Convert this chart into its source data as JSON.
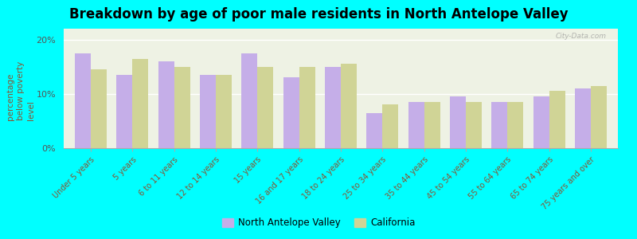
{
  "title": "Breakdown by age of poor male residents in North Antelope Valley",
  "ylabel": "percentage\nbelow poverty\nlevel",
  "categories": [
    "Under 5 years",
    "5 years",
    "6 to 11 years",
    "12 to 14 years",
    "15 years",
    "16 and 17 years",
    "18 to 24 years",
    "25 to 34 years",
    "35 to 44 years",
    "45 to 54 years",
    "55 to 64 years",
    "65 to 74 years",
    "75 years and over"
  ],
  "nav_values": [
    17.5,
    13.5,
    16.0,
    13.5,
    17.5,
    13.0,
    15.0,
    6.5,
    8.5,
    9.5,
    8.5,
    9.5,
    11.0
  ],
  "ca_values": [
    14.5,
    16.5,
    15.0,
    13.5,
    15.0,
    15.0,
    15.5,
    8.0,
    8.5,
    8.5,
    8.5,
    10.5,
    11.5
  ],
  "nav_color": "#c5aee8",
  "ca_color": "#d0d496",
  "bg_grad_top": "#f0f4e8",
  "bg_grad_bottom": "#e8f0e0",
  "outer_bg": "#00ffff",
  "ylim": [
    0,
    22
  ],
  "yticks": [
    0,
    10,
    20
  ],
  "ytick_labels": [
    "0%",
    "10%",
    "20%"
  ],
  "legend_nav": "North Antelope Valley",
  "legend_ca": "California",
  "title_fontsize": 12,
  "label_fontsize": 7,
  "watermark": "City-Data.com"
}
